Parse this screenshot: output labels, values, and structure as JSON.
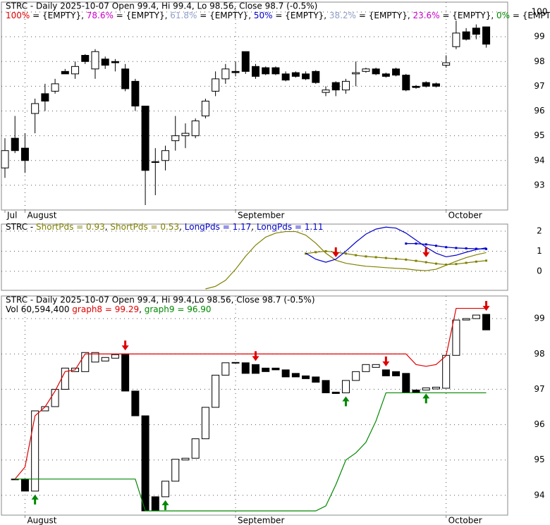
{
  "chart_data": [
    {
      "type": "candlestick",
      "title": "STRC - Daily 2025-10-07 Open 99.4, Hi 99.4, Lo 98.56, Close 98.7 (-0.5%)",
      "legend": [
        {
          "text": "100%",
          "color": "#e00000"
        },
        {
          "text": " = {EMPTY}, "
        },
        {
          "text": "78.6%",
          "color": "#cc00cc"
        },
        {
          "text": " = {EMPTY}, "
        },
        {
          "text": "61.8%",
          "color": "#8fa0c8"
        },
        {
          "text": " = {EMPTY}, "
        },
        {
          "text": "50%",
          "color": "#0000cc"
        },
        {
          "text": " = {EMPTY}, "
        },
        {
          "text": "38.2%",
          "color": "#8fa0c8"
        },
        {
          "text": " = {EMPTY}, "
        },
        {
          "text": "23.6%",
          "color": "#cc00cc"
        },
        {
          "text": " = {EMPTY}, "
        },
        {
          "text": "0%",
          "color": "#008800"
        },
        {
          "text": " = {EMPTY}"
        }
      ],
      "categories": [
        "Jul",
        null,
        "August",
        null,
        null,
        null,
        null,
        null,
        null,
        null,
        null,
        null,
        null,
        null,
        null,
        null,
        null,
        null,
        null,
        null,
        null,
        null,
        null,
        "September",
        null,
        null,
        null,
        null,
        null,
        null,
        null,
        null,
        null,
        null,
        null,
        null,
        null,
        null,
        null,
        null,
        null,
        null,
        null,
        null,
        "October",
        null,
        null,
        null,
        null
      ],
      "open": [
        93.7,
        94.9,
        94.5,
        95.9,
        96.7,
        96.8,
        97.6,
        97.5,
        98.25,
        97.7,
        98.1,
        98.0,
        97.7,
        97.2,
        96.2,
        93.95,
        94.0,
        94.8,
        95.0,
        95.0,
        95.8,
        96.8,
        97.3,
        97.6,
        98.4,
        97.8,
        97.75,
        97.75,
        97.5,
        97.55,
        97.5,
        97.6,
        96.75,
        97.15,
        96.85,
        97.5,
        97.6,
        97.7,
        97.5,
        97.7,
        97.45,
        97.0,
        97.15,
        97.1,
        97.85,
        98.6,
        99.2,
        99.35,
        99.4
      ],
      "high": [
        94.9,
        95.8,
        95.1,
        96.5,
        97.1,
        97.3,
        97.7,
        98.0,
        98.3,
        98.5,
        98.2,
        98.1,
        97.9,
        97.3,
        96.2,
        94.5,
        94.6,
        95.8,
        95.5,
        95.7,
        96.5,
        97.6,
        97.9,
        98.0,
        98.4,
        97.9,
        97.8,
        97.8,
        97.6,
        97.6,
        97.6,
        97.65,
        97.0,
        97.2,
        97.3,
        98.0,
        97.75,
        97.75,
        97.55,
        97.75,
        97.5,
        97.05,
        97.2,
        97.15,
        98.25,
        99.65,
        99.35,
        99.5,
        99.4
      ],
      "low": [
        93.3,
        94.3,
        93.5,
        95.1,
        96.0,
        96.7,
        97.5,
        97.3,
        97.9,
        97.3,
        97.7,
        97.6,
        96.8,
        96.0,
        92.2,
        92.6,
        93.6,
        94.4,
        94.5,
        94.9,
        95.7,
        96.6,
        97.1,
        97.4,
        97.5,
        97.3,
        97.45,
        97.45,
        97.2,
        97.35,
        97.25,
        97.1,
        96.6,
        96.6,
        96.7,
        97.0,
        97.55,
        97.45,
        97.35,
        97.4,
        96.8,
        96.9,
        96.95,
        96.95,
        97.75,
        98.5,
        98.85,
        98.9,
        98.56
      ],
      "close": [
        94.4,
        94.4,
        94.0,
        96.3,
        96.4,
        97.1,
        97.5,
        97.8,
        98.0,
        98.4,
        97.85,
        97.95,
        96.9,
        96.2,
        93.6,
        93.95,
        94.4,
        95.0,
        95.1,
        95.6,
        96.4,
        97.3,
        97.7,
        97.55,
        97.6,
        97.4,
        97.5,
        97.5,
        97.25,
        97.4,
        97.3,
        97.15,
        96.85,
        96.85,
        97.2,
        97.55,
        97.7,
        97.5,
        97.4,
        97.45,
        96.85,
        96.95,
        97.0,
        97.0,
        97.95,
        99.15,
        98.9,
        99.1,
        98.7
      ],
      "ylim": [
        92.0,
        100.4
      ],
      "yticks": [
        93,
        94,
        95,
        96,
        97,
        98,
        99,
        100
      ],
      "grid": true
    },
    {
      "type": "line",
      "legend": [
        {
          "text": "STRC - "
        },
        {
          "text": "ShortPds = 0.93",
          "color": "#808000"
        },
        {
          "text": ", "
        },
        {
          "text": "ShortPds = 0.53",
          "color": "#808000"
        },
        {
          "text": ", "
        },
        {
          "text": "LongPds = 1.17",
          "color": "#0000cc"
        },
        {
          "text": ", "
        },
        {
          "text": "LongPds = 1.11",
          "color": "#0000cc"
        }
      ],
      "series": [
        {
          "name": "ShortPds",
          "color": "#808000",
          "values": [
            null,
            null,
            null,
            null,
            null,
            null,
            null,
            null,
            null,
            null,
            null,
            null,
            null,
            null,
            null,
            null,
            null,
            null,
            null,
            null,
            -0.88,
            -0.75,
            -0.45,
            0.1,
            0.75,
            1.3,
            1.7,
            1.9,
            1.98,
            1.98,
            1.8,
            1.4,
            0.9,
            0.55,
            0.4,
            0.32,
            0.25,
            0.22,
            0.18,
            0.15,
            0.12,
            0.06,
            0.03,
            0.1,
            0.3,
            0.5,
            0.68,
            0.82,
            0.93
          ]
        },
        {
          "name": "ShortPds",
          "color": "#808000",
          "markers": true,
          "values": [
            null,
            null,
            null,
            null,
            null,
            null,
            null,
            null,
            null,
            null,
            null,
            null,
            null,
            null,
            null,
            null,
            null,
            null,
            null,
            null,
            null,
            null,
            null,
            null,
            null,
            null,
            null,
            null,
            null,
            null,
            0.88,
            0.95,
            1.0,
            0.95,
            0.88,
            0.8,
            0.74,
            0.7,
            0.66,
            0.62,
            0.58,
            0.52,
            0.45,
            0.38,
            0.33,
            0.36,
            0.42,
            0.48,
            0.53
          ]
        },
        {
          "name": "LongPds",
          "color": "#0000cc",
          "values": [
            null,
            null,
            null,
            null,
            null,
            null,
            null,
            null,
            null,
            null,
            null,
            null,
            null,
            null,
            null,
            null,
            null,
            null,
            null,
            null,
            null,
            null,
            null,
            null,
            null,
            null,
            null,
            null,
            null,
            null,
            0.9,
            0.6,
            0.45,
            0.6,
            1.0,
            1.45,
            1.85,
            2.1,
            2.2,
            2.15,
            1.9,
            1.55,
            1.2,
            0.9,
            0.72,
            0.8,
            0.95,
            1.08,
            1.17
          ]
        },
        {
          "name": "LongPds",
          "color": "#0000cc",
          "markers": true,
          "values": [
            null,
            null,
            null,
            null,
            null,
            null,
            null,
            null,
            null,
            null,
            null,
            null,
            null,
            null,
            null,
            null,
            null,
            null,
            null,
            null,
            null,
            null,
            null,
            null,
            null,
            null,
            null,
            null,
            null,
            null,
            null,
            null,
            null,
            null,
            null,
            null,
            null,
            null,
            null,
            null,
            1.38,
            1.38,
            1.34,
            1.27,
            1.2,
            1.16,
            1.14,
            1.12,
            1.11
          ]
        }
      ],
      "sell_signals": [
        33,
        42
      ],
      "ylim": [
        -0.95,
        2.35
      ],
      "yticks": [
        0,
        1,
        2
      ],
      "grid": true
    },
    {
      "type": "candlestick",
      "title": "STRC - Daily 2025-10-07 Open 99.4, Hi 99.4,Lo 98.56, Close 98.7 (-0.5%)",
      "legend": [
        {
          "text": "Vol 60,594,400 "
        },
        {
          "text": "graph8 = 99.29",
          "color": "#e00000"
        },
        {
          "text": ", "
        },
        {
          "text": "graph9 = 96.90",
          "color": "#008800"
        }
      ],
      "categories": [
        null,
        null,
        "August",
        null,
        null,
        null,
        null,
        null,
        null,
        null,
        null,
        null,
        null,
        null,
        null,
        null,
        null,
        null,
        null,
        null,
        null,
        null,
        null,
        "September",
        null,
        null,
        null,
        null,
        null,
        null,
        null,
        null,
        null,
        null,
        null,
        null,
        null,
        null,
        null,
        null,
        null,
        null,
        null,
        null,
        "October",
        null,
        null,
        null,
        null
      ],
      "open": [
        null,
        94.46,
        94.46,
        94.12,
        96.39,
        96.51,
        97.0,
        97.5,
        97.5,
        97.77,
        97.8,
        97.88,
        98.0,
        96.95,
        96.25,
        93.96,
        93.96,
        94.4,
        95.0,
        95.05,
        95.6,
        96.49,
        97.4,
        97.74,
        97.75,
        97.7,
        97.6,
        97.6,
        97.55,
        97.45,
        97.38,
        97.35,
        97.25,
        96.92,
        96.9,
        97.25,
        97.5,
        97.62,
        97.55,
        97.5,
        97.45,
        96.98,
        96.98,
        97.01,
        97.03,
        97.96,
        98.96,
        99.0,
        99.12
      ],
      "close": [
        null,
        94.46,
        94.12,
        96.39,
        96.51,
        97.0,
        97.6,
        97.6,
        98.04,
        98.04,
        97.9,
        97.98,
        96.95,
        96.25,
        93.56,
        93.56,
        94.4,
        95.02,
        95.05,
        95.6,
        96.49,
        97.4,
        97.75,
        97.76,
        97.45,
        97.45,
        97.5,
        97.55,
        97.35,
        97.35,
        97.3,
        97.2,
        96.9,
        96.88,
        97.25,
        97.5,
        97.7,
        97.7,
        97.38,
        97.38,
        96.9,
        96.9,
        97.04,
        97.06,
        97.96,
        98.96,
        99.0,
        99.1,
        98.68
      ],
      "series": [
        {
          "name": "graph8",
          "color": "#e00000",
          "values": [
            null,
            94.46,
            94.8,
            96.25,
            96.5,
            96.95,
            97.5,
            97.55,
            98.0,
            98.0,
            98.0,
            98.0,
            98.0,
            98.0,
            98.0,
            98.0,
            98.0,
            98.0,
            98.0,
            98.0,
            98.0,
            98.0,
            98.0,
            98.0,
            98.0,
            98.0,
            98.0,
            98.0,
            98.0,
            98.0,
            98.0,
            98.0,
            98.0,
            98.0,
            98.0,
            98.0,
            98.0,
            98.0,
            98.0,
            98.0,
            98.0,
            97.7,
            97.65,
            97.7,
            97.95,
            99.29,
            99.29,
            99.29,
            99.29
          ]
        },
        {
          "name": "graph9",
          "color": "#008800",
          "values": [
            null,
            94.46,
            94.46,
            94.46,
            94.46,
            94.46,
            94.46,
            94.46,
            94.46,
            94.46,
            94.46,
            94.46,
            94.46,
            94.46,
            93.56,
            93.56,
            93.56,
            93.56,
            93.56,
            93.56,
            93.56,
            93.56,
            93.56,
            93.56,
            93.56,
            93.56,
            93.56,
            93.56,
            93.56,
            93.56,
            93.56,
            93.56,
            93.7,
            94.3,
            95.0,
            95.2,
            95.5,
            96.1,
            96.9,
            96.9,
            96.9,
            96.9,
            96.9,
            96.9,
            96.9,
            96.9,
            96.9,
            96.9,
            96.9
          ]
        }
      ],
      "sell_signals": [
        12,
        25,
        38,
        48
      ],
      "buy_signals": [
        3,
        16,
        34,
        42
      ],
      "ylim": [
        93.44,
        99.64
      ],
      "yticks": [
        94,
        95,
        96,
        97,
        98,
        99
      ],
      "grid": true
    }
  ]
}
